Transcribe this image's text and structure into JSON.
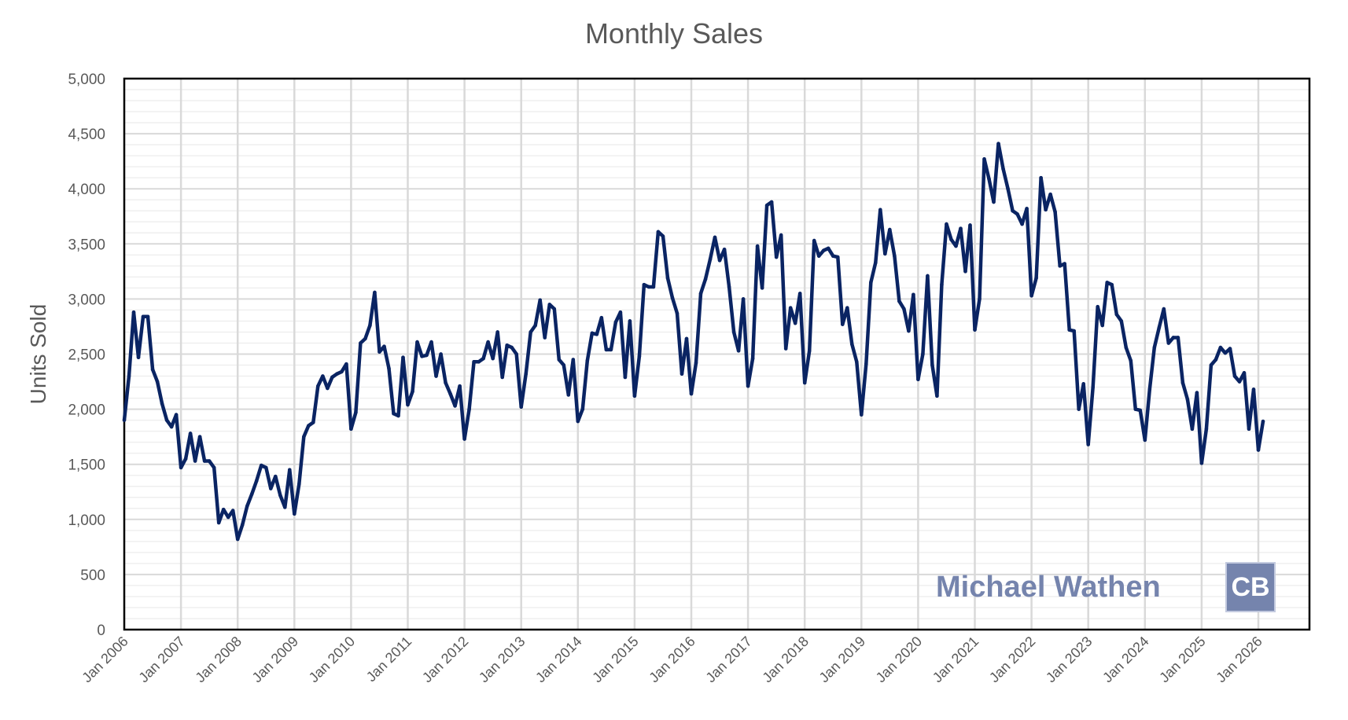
{
  "chart_data": {
    "type": "line",
    "title": "Monthly Sales",
    "xlabel": "",
    "ylabel": "Units Sold",
    "ylim": [
      0,
      5000
    ],
    "yticks": [
      "0",
      "500",
      "1,000",
      "1,500",
      "2,000",
      "2,500",
      "3,000",
      "3,500",
      "4,000",
      "4,500",
      "5,000"
    ],
    "xticks": [
      "Jan 2006",
      "Jan 2007",
      "Jan 2008",
      "Jan 2009",
      "Jan 2010",
      "Jan 2011",
      "Jan 2012",
      "Jan 2013",
      "Jan 2014",
      "Jan 2015",
      "Jan 2016",
      "Jan 2017",
      "Jan 2018",
      "Jan 2019",
      "Jan 2020",
      "Jan 2021",
      "Jan 2022",
      "Jan 2023",
      "Jan 2024",
      "Jan 2025",
      "Jan 2026"
    ],
    "x_start": "Jan 2006",
    "x_frequency": "monthly",
    "grid": true,
    "line_color": "#0a2463",
    "series": [
      {
        "values": [
          1900,
          2300,
          2880,
          2470,
          2840,
          2840,
          2360,
          2250,
          2050,
          1900,
          1840,
          1950,
          1470,
          1550,
          1780,
          1530,
          1750,
          1530,
          1530,
          1470,
          970,
          1090,
          1020,
          1080,
          820,
          950,
          1120,
          1230,
          1350,
          1490,
          1470,
          1280,
          1390,
          1220,
          1110,
          1450,
          1050,
          1320,
          1750,
          1850,
          1880,
          2210,
          2300,
          2190,
          2290,
          2320,
          2340,
          2410,
          1820,
          1970,
          2600,
          2640,
          2760,
          3060,
          2520,
          2570,
          2370,
          1960,
          1940,
          2470,
          2040,
          2160,
          2610,
          2480,
          2490,
          2610,
          2300,
          2500,
          2240,
          2140,
          2030,
          2210,
          1730,
          2000,
          2430,
          2430,
          2460,
          2610,
          2460,
          2700,
          2290,
          2580,
          2560,
          2500,
          2020,
          2320,
          2700,
          2760,
          2990,
          2650,
          2950,
          2910,
          2450,
          2400,
          2130,
          2450,
          1890,
          2000,
          2440,
          2690,
          2680,
          2830,
          2540,
          2540,
          2790,
          2880,
          2290,
          2800,
          2120,
          2480,
          3130,
          3110,
          3110,
          3610,
          3570,
          3190,
          3010,
          2870,
          2320,
          2640,
          2140,
          2420,
          3050,
          3180,
          3360,
          3560,
          3350,
          3450,
          3110,
          2700,
          2530,
          3000,
          2210,
          2460,
          3480,
          3100,
          3850,
          3880,
          3380,
          3580,
          2550,
          2920,
          2780,
          3050,
          2240,
          2530,
          3530,
          3390,
          3440,
          3460,
          3390,
          3380,
          2770,
          2920,
          2590,
          2430,
          1950,
          2410,
          3150,
          3330,
          3810,
          3410,
          3630,
          3390,
          2980,
          2910,
          2710,
          3040,
          2270,
          2500,
          3210,
          2400,
          2120,
          3130,
          3680,
          3540,
          3480,
          3640,
          3250,
          3670,
          2720,
          3000,
          4270,
          4090,
          3880,
          4410,
          4180,
          4000,
          3800,
          3770,
          3680,
          3820,
          3030,
          3190,
          4100,
          3810,
          3950,
          3790,
          3300,
          3320,
          2720,
          2710,
          2000,
          2230,
          1680,
          2200,
          2930,
          2760,
          3150,
          3130,
          2860,
          2800,
          2560,
          2440,
          2000,
          1990,
          1720,
          2180,
          2560,
          2740,
          2910,
          2600,
          2650,
          2650,
          2240,
          2090,
          1820,
          2150,
          1510,
          1820,
          2400,
          2450,
          2560,
          2510,
          2550,
          2300,
          2250,
          2330,
          1820,
          2180,
          1630,
          1890
        ]
      }
    ]
  },
  "watermark": {
    "name": "Michael Wathen",
    "logo_text": "CB"
  }
}
